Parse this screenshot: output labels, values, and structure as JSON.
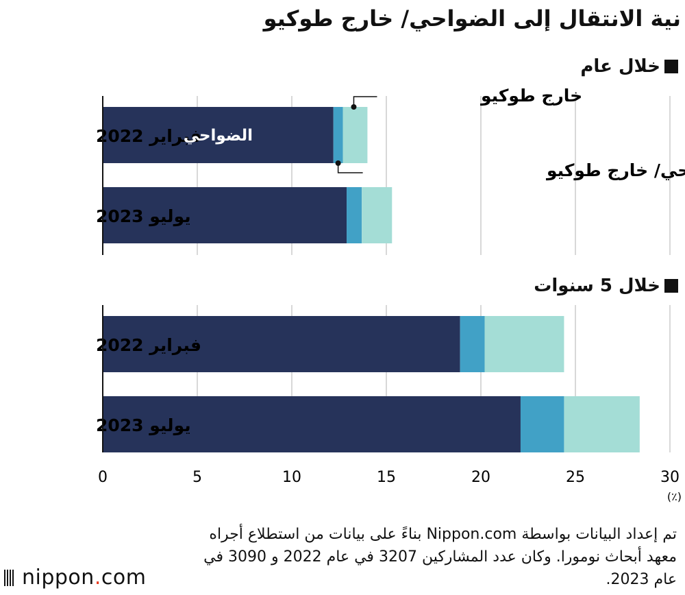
{
  "title": "نية الانتقال إلى الضواحي/ خارج طوكيو",
  "panels": [
    {
      "label": "خلال عام"
    },
    {
      "label": "خلال 5 سنوات"
    }
  ],
  "annotations": {
    "outside_tokyo": "خارج طوكيو",
    "suburbs": "الضواحي",
    "suburbs_or_outside": "الضواحي/ خارج طوكيو"
  },
  "unit_label": "(٪)",
  "note": "تم إعداد البيانات بواسطة Nippon.com بناءً على بيانات من استطلاع أجراه معهد أبحاث نومورا. وكان عدد المشاركين 3207 في عام 2022 و 3090 في عام 2023.",
  "brand": {
    "name": "nippon",
    "dot": ".",
    "tld": "com"
  },
  "colors": {
    "suburbs": "#26335a",
    "suburbs_or_outside": "#41a1c6",
    "outside_tokyo": "#a4ddd6",
    "grid": "#cccccc"
  },
  "chart_data": [
    {
      "type": "bar",
      "orientation": "horizontal",
      "stacked": true,
      "title": "خلال عام",
      "categories": [
        "فبراير 2022",
        "يوليو 2023"
      ],
      "series": [
        {
          "name": "الضواحي",
          "values": [
            12.2,
            12.9
          ]
        },
        {
          "name": "الضواحي/ خارج طوكيو",
          "values": [
            0.5,
            0.8
          ]
        },
        {
          "name": "خارج طوكيو",
          "values": [
            1.3,
            1.6
          ]
        }
      ],
      "xlim": [
        0,
        30
      ],
      "xticks": [
        0,
        5,
        10,
        15,
        20,
        25,
        30
      ],
      "grid": true
    },
    {
      "type": "bar",
      "orientation": "horizontal",
      "stacked": true,
      "title": "خلال 5 سنوات",
      "categories": [
        "فبراير 2022",
        "يوليو 2023"
      ],
      "series": [
        {
          "name": "الضواحي",
          "values": [
            18.9,
            22.1
          ]
        },
        {
          "name": "الضواحي/ خارج طوكيو",
          "values": [
            1.3,
            2.3
          ]
        },
        {
          "name": "خارج طوكيو",
          "values": [
            4.2,
            4.0
          ]
        }
      ],
      "xlim": [
        0,
        30
      ],
      "xticks": [
        0,
        5,
        10,
        15,
        20,
        25,
        30
      ],
      "grid": true
    }
  ]
}
